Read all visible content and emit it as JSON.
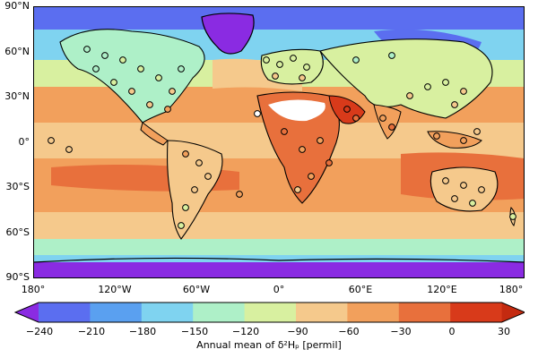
{
  "map": {
    "lat_ticks": [
      "90°N",
      "60°N",
      "30°N",
      "0°",
      "30°S",
      "60°S",
      "90°S"
    ],
    "lon_ticks": [
      "180°",
      "120°W",
      "60°W",
      "0°",
      "60°E",
      "120°E",
      "180°"
    ],
    "projection": "equirectangular",
    "background_field": "annual mean precipitation δ²H, banded by latitude and continents",
    "station_marker": "circle, filled by value, black outline",
    "coastline_color": "#000000"
  },
  "colorbar": {
    "ticks": [
      "−240",
      "−210",
      "−180",
      "−150",
      "−120",
      "−90",
      "−60",
      "−30",
      "0",
      "30"
    ],
    "label": "Annual mean of δ²Hₚ [permil]",
    "extend": "both",
    "colors": [
      "#8a2be2",
      "#5b6ef0",
      "#5aa0f0",
      "#7fd3f0",
      "#aef0c8",
      "#d8f0a0",
      "#f5c98c",
      "#f2a05c",
      "#e8703c",
      "#d83a1a",
      "#c42a10"
    ]
  }
}
